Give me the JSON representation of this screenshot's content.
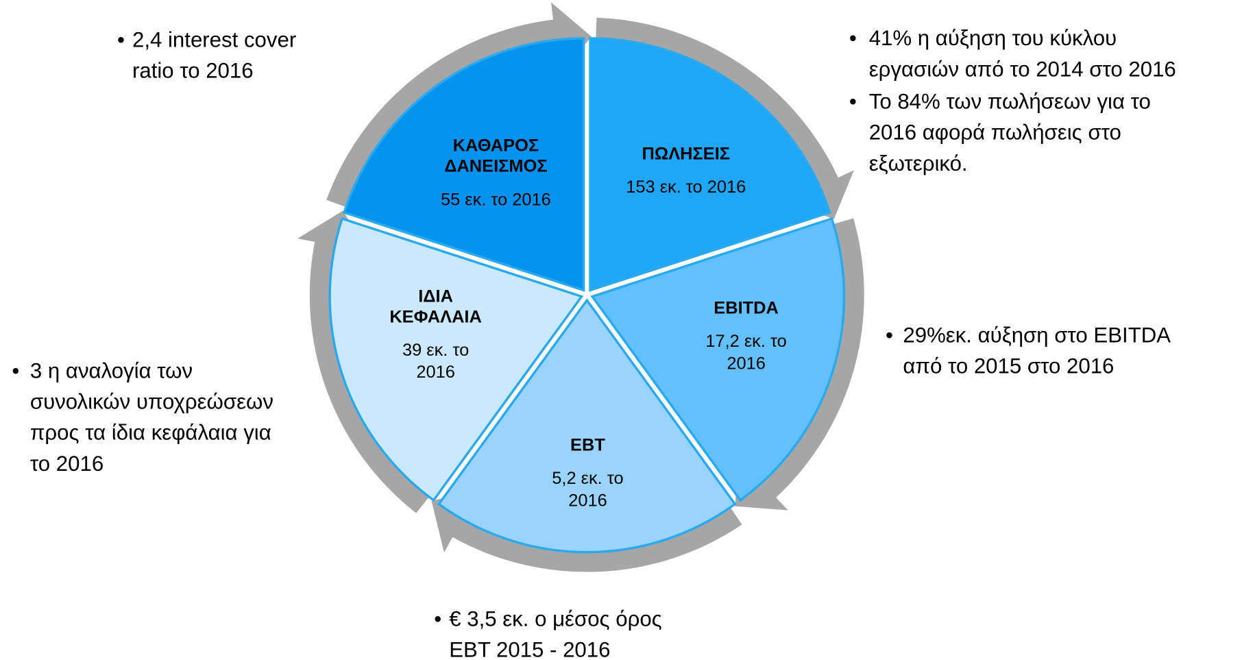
{
  "segments": [
    {
      "title": [
        "ΠΩΛΗΣΕΙΣ"
      ],
      "value": [
        "153 εκ. το 2016"
      ]
    },
    {
      "title": [
        "EBITDA"
      ],
      "value": [
        "17,2 εκ. το",
        "2016"
      ]
    },
    {
      "title": [
        "EBT"
      ],
      "value": [
        "5,2 εκ. το",
        "2016"
      ]
    },
    {
      "title": [
        "ΙΔΙΑ",
        "ΚΕΦΑΛΑΙΑ"
      ],
      "value": [
        "39 εκ. το",
        "2016"
      ]
    },
    {
      "title": [
        "ΚΑΘΑΡΟΣ",
        "ΔΑΝΕΙΣΜΟΣ"
      ],
      "value": [
        "55 εκ. το 2016"
      ]
    }
  ],
  "callouts": [
    {
      "bullets": [
        [
          "41% η αύξηση του κύκλου",
          "εργασιών από το 2014 στο 2016"
        ],
        [
          "Το 84% των πωλήσεων για το",
          "2016 αφορά πωλήσεις στο",
          "εξωτερικό."
        ]
      ]
    },
    {
      "bullets": [
        [
          "29%εκ. αύξηση στο EBITDA",
          "από το 2015 στο 2016"
        ]
      ]
    },
    {
      "bullets": [
        [
          "€ 3,5 εκ. ο μέσος όρος",
          "EBT 2015 - 2016"
        ]
      ]
    },
    {
      "bullets": [
        [
          "3 η αναλογία των",
          "συνολικών υποχρεώσεων",
          "προς τα ίδια κεφάλαια για",
          "το 2016"
        ]
      ]
    },
    {
      "bullets": [
        [
          "2,4 interest cover",
          "ratio το 2016"
        ]
      ]
    }
  ]
}
